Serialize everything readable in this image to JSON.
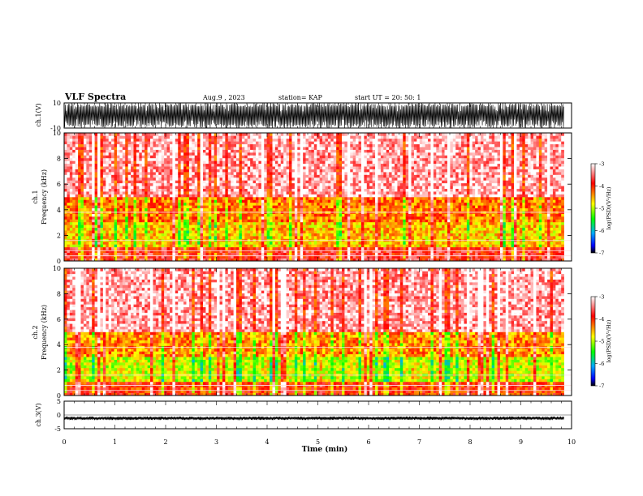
{
  "header": {
    "title": "VLF Spectra",
    "date": "Aug.9  , 2023",
    "station": "station= KAP",
    "start_ut": "start  UT  =   20: 50: 1"
  },
  "chart_data": [
    {
      "type": "line",
      "panel": "ch1-waveform",
      "ylabel": "ch.1(V)",
      "ylim": [
        -10,
        10
      ],
      "y_tick_labels": [
        "10",
        "-10"
      ],
      "x_range_min": [
        0,
        9.85
      ],
      "description_level": "dense saturated oscillation near full scale"
    },
    {
      "type": "heatmap",
      "panel": "ch1-spectrogram",
      "ylabel": "ch.1\nFrequency  (kHz)",
      "ylim": [
        0,
        10
      ],
      "y_tick_labels": [
        "0",
        "2",
        "4",
        "6",
        "8",
        "10"
      ],
      "x_range_min": [
        0,
        9.85
      ],
      "band_intensity_log_psd": [
        {
          "freq_khz": [
            0,
            1
          ],
          "value": -3.8
        },
        {
          "freq_khz": [
            1,
            3
          ],
          "value": -4.6
        },
        {
          "freq_khz": [
            3,
            5
          ],
          "value": -4.3
        },
        {
          "freq_khz": [
            5,
            10
          ],
          "value": -3.3
        }
      ],
      "colorbar": {
        "label": "log(PSD)(V²/Hz)",
        "range": [
          -7,
          -3
        ],
        "tick_labels": [
          "-3",
          "-4",
          "-5",
          "-6",
          "-7"
        ],
        "colors": [
          "#ffffff",
          "#ff0000",
          "#ffff00",
          "#00ff00",
          "#00aaff",
          "#0000ff",
          "#000000"
        ]
      }
    },
    {
      "type": "heatmap",
      "panel": "ch2-spectrogram",
      "ylabel": "ch.2\nFrequency  (kHz)",
      "ylim": [
        0,
        10
      ],
      "y_tick_labels": [
        "0",
        "2",
        "4",
        "6",
        "8",
        "10"
      ],
      "x_range_min": [
        0,
        9.85
      ],
      "band_intensity_log_psd": [
        {
          "freq_khz": [
            0,
            1
          ],
          "value": -4.0
        },
        {
          "freq_khz": [
            1,
            3
          ],
          "value": -4.9
        },
        {
          "freq_khz": [
            3,
            5
          ],
          "value": -4.4
        },
        {
          "freq_khz": [
            5,
            10
          ],
          "value": -3.3
        }
      ],
      "colorbar": {
        "label": "log(PSD)(V²/Hz)",
        "range": [
          -7,
          -3
        ],
        "tick_labels": [
          "-3",
          "-4",
          "-5",
          "-6",
          "-7"
        ],
        "colors": [
          "#ffffff",
          "#ff0000",
          "#ffff00",
          "#00ff00",
          "#00aaff",
          "#0000ff",
          "#000000"
        ]
      }
    },
    {
      "type": "line",
      "panel": "ch3-waveform",
      "ylabel": "ch.3(V)",
      "ylim": [
        -5,
        5
      ],
      "y_tick_labels": [
        "5",
        "0",
        "-5"
      ],
      "x_range_min": [
        0,
        9.85
      ],
      "trace_center_v": -1.2
    }
  ],
  "x_axis": {
    "label": "Time  (min)",
    "range": [
      0,
      10
    ],
    "tick_labels": [
      "0",
      "1",
      "2",
      "3",
      "4",
      "5",
      "6",
      "7",
      "8",
      "9",
      "10"
    ]
  }
}
